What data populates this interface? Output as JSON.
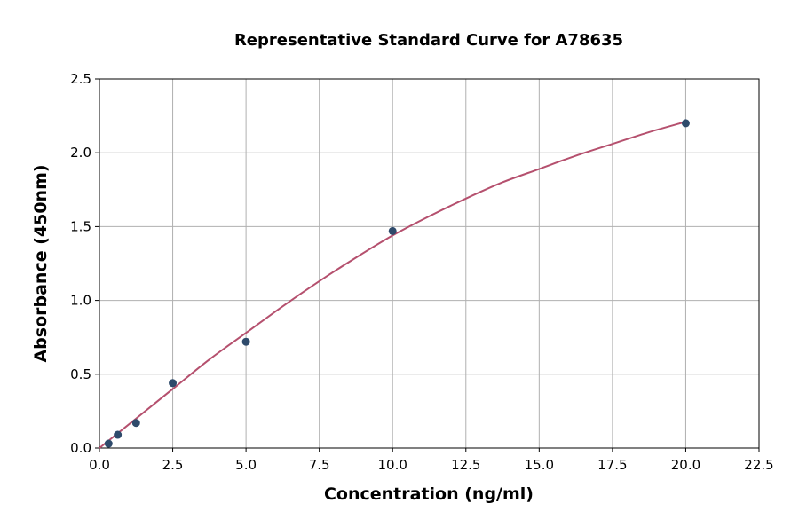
{
  "chart_data": {
    "type": "scatter",
    "title": "Representative Standard Curve for A78635",
    "x_label": "Concentration (ng/ml)",
    "y_label": "Absorbance (450nm)",
    "xlim": [
      0,
      22.5
    ],
    "ylim": [
      0,
      2.5
    ],
    "xticks": [
      {
        "value": 0,
        "label": "0.0"
      },
      2.5,
      {
        "value": 5,
        "label": "5.0"
      },
      7.5,
      {
        "value": 10,
        "label": "10.0"
      },
      12.5,
      {
        "value": 15,
        "label": "15.0"
      },
      17.5,
      {
        "value": 20,
        "label": "20.0"
      },
      22.5
    ],
    "yticks": [
      {
        "value": 0,
        "label": "0.0"
      },
      0.5,
      {
        "value": 1,
        "label": "1.0"
      },
      1.5,
      {
        "value": 2,
        "label": "2.0"
      },
      2.5
    ],
    "grid": true,
    "points": {
      "color": "#2e4a6b",
      "x": [
        0.312,
        0.625,
        1.25,
        2.5,
        5,
        10,
        20
      ],
      "y": [
        0.03,
        0.09,
        0.17,
        0.44,
        0.72,
        1.47,
        2.2
      ]
    },
    "curve": {
      "color": "#b5506e",
      "x": [
        0,
        1.25,
        2.5,
        3.75,
        5,
        6.25,
        7.5,
        8.75,
        10,
        11.25,
        12.5,
        13.75,
        15,
        16.25,
        17.5,
        18.75,
        20
      ],
      "y": [
        0,
        0.2,
        0.4,
        0.6,
        0.78,
        0.96,
        1.13,
        1.29,
        1.44,
        1.57,
        1.69,
        1.8,
        1.89,
        1.98,
        2.06,
        2.14,
        2.21
      ]
    }
  }
}
